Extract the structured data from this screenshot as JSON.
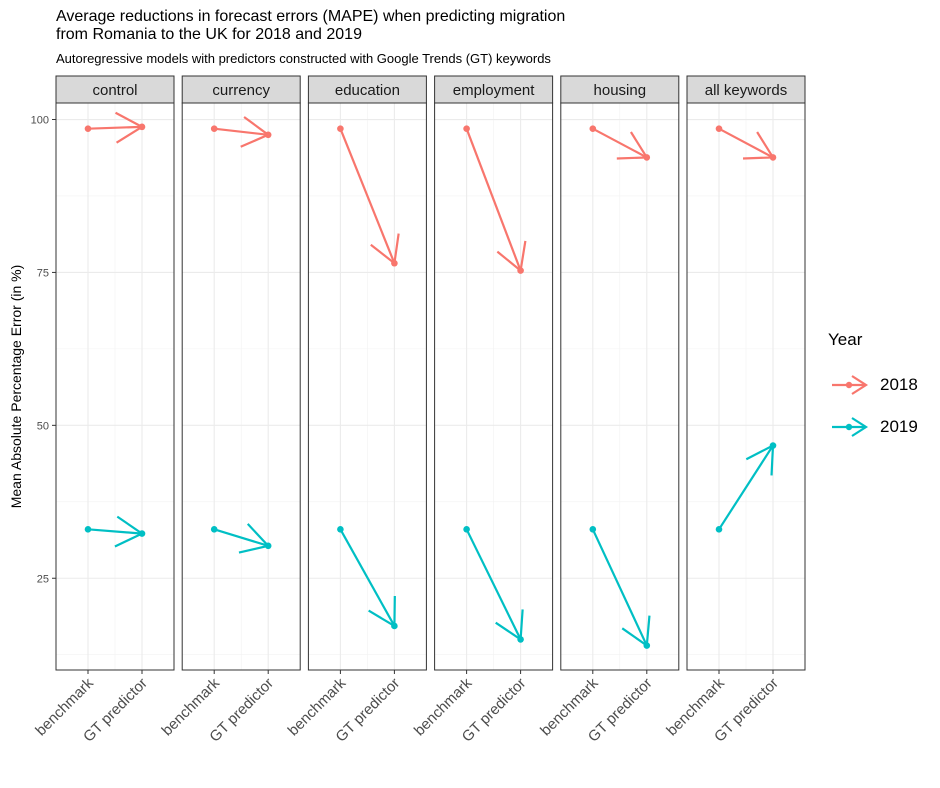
{
  "chart_data": {
    "type": "line",
    "title": "Average reductions in forecast errors (MAPE) when predicting migration\nfrom Romania to the UK for 2018 and 2019",
    "subtitle": "Autoregressive models with predictors constructed with Google Trends (GT) keywords",
    "ylabel": "Mean Absolute Percentage Error (in %)",
    "xlabel": "",
    "ylim": [
      10,
      102.7
    ],
    "yticks": [
      25,
      50,
      75,
      100
    ],
    "categories": [
      "benchmark",
      "GT predictor"
    ],
    "facets": [
      "control",
      "currency",
      "education",
      "employment",
      "housing",
      "all keywords"
    ],
    "grid": true,
    "legend": {
      "title": "Year",
      "position": "right"
    },
    "series": [
      {
        "name": "2018",
        "color": "#F8766D",
        "values": [
          [
            98.5,
            98.8
          ],
          [
            98.5,
            97.5
          ],
          [
            98.5,
            76.5
          ],
          [
            98.5,
            75.3
          ],
          [
            98.5,
            93.8
          ],
          [
            98.5,
            93.8
          ]
        ]
      },
      {
        "name": "2019",
        "color": "#00BFC4",
        "values": [
          [
            33.0,
            32.3
          ],
          [
            33.0,
            30.3
          ],
          [
            33.0,
            17.2
          ],
          [
            33.0,
            15.0
          ],
          [
            33.0,
            14.0
          ],
          [
            33.0,
            46.7
          ]
        ]
      }
    ]
  }
}
